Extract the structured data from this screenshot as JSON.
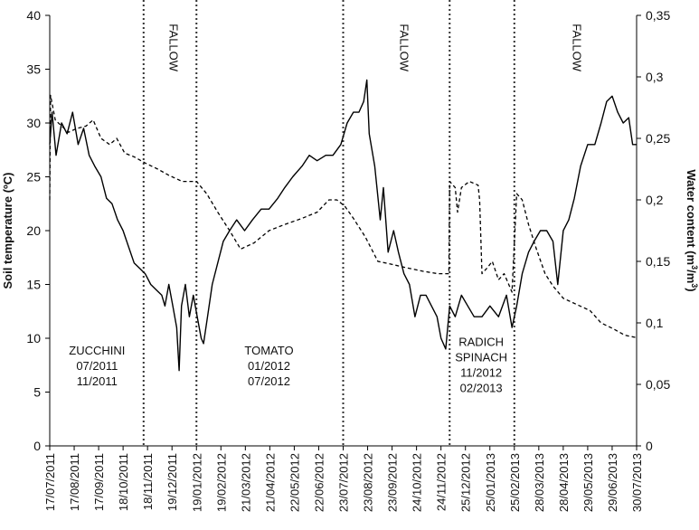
{
  "chart_data": {
    "type": "line",
    "title": "",
    "ylabel_left": "Soil temperature (ºC)",
    "ylabel_right_parts": [
      "Water content (m",
      "3",
      "/m",
      "3",
      ")"
    ],
    "ylim_left": [
      0,
      40
    ],
    "ylim_right": [
      0,
      0.35
    ],
    "yticks_left": [
      "0",
      "5",
      "10",
      "15",
      "20",
      "25",
      "30",
      "35",
      "40"
    ],
    "yticks_right": [
      "0",
      "0,05",
      "0,1",
      "0,15",
      "0,2",
      "0,25",
      "0,3",
      "0,35"
    ],
    "x_range": [
      "2011-07-17",
      "2013-07-30"
    ],
    "xtick_labels": [
      "17/07/2011",
      "17/08/2011",
      "17/09/2011",
      "18/10/2011",
      "18/11/2011",
      "19/12/2011",
      "19/01/2012",
      "19/02/2012",
      "21/03/2012",
      "21/04/2012",
      "22/05/2012",
      "22/06/2012",
      "23/07/2012",
      "23/08/2012",
      "23/09/2012",
      "24/10/2012",
      "24/11/2012",
      "25/12/2012",
      "25/01/2013",
      "25/02/2013",
      "28/03/2013",
      "28/04/2013",
      "29/05/2013",
      "29/06/2013",
      "30/07/2013"
    ],
    "xtick_dates": [
      "2011-07-17",
      "2011-08-17",
      "2011-09-17",
      "2011-10-18",
      "2011-11-18",
      "2011-12-19",
      "2012-01-19",
      "2012-02-19",
      "2012-03-21",
      "2012-04-21",
      "2012-05-22",
      "2012-06-22",
      "2012-07-23",
      "2012-08-23",
      "2012-09-23",
      "2012-10-24",
      "2012-11-24",
      "2012-12-25",
      "2013-01-25",
      "2013-02-25",
      "2013-03-28",
      "2013-04-28",
      "2013-05-29",
      "2013-06-29",
      "2013-07-30"
    ],
    "dividers": [
      "2011-11-13",
      "2012-01-19",
      "2012-07-23",
      "2012-12-05",
      "2013-02-25"
    ],
    "annotations": [
      {
        "lines": [
          "ZUCCHINI",
          "07/2011",
          "11/2011"
        ],
        "date": "2011-09-15",
        "value": 8.5,
        "rotated": false
      },
      {
        "lines": [
          "TOMATO",
          "01/2012",
          "07/2012"
        ],
        "date": "2012-04-20",
        "value": 8.5,
        "rotated": false
      },
      {
        "lines": [
          "RADICH",
          "SPINACH",
          "11/2012",
          "02/2013"
        ],
        "date": "2013-01-14",
        "value": 9.3,
        "rotated": false
      },
      {
        "lines": [
          "FALLOW"
        ],
        "date": "2011-12-16",
        "value": 37,
        "rotated": true
      },
      {
        "lines": [
          "FALLOW"
        ],
        "date": "2012-10-03",
        "value": 37,
        "rotated": true
      },
      {
        "lines": [
          "FALLOW"
        ],
        "date": "2013-05-10",
        "value": 37,
        "rotated": true
      }
    ],
    "series": [
      {
        "style": "solid",
        "axis": "left",
        "points": [
          [
            "2011-07-17",
            28
          ],
          [
            "2011-07-20",
            31
          ],
          [
            "2011-07-25",
            27
          ],
          [
            "2011-08-01",
            30
          ],
          [
            "2011-08-08",
            29
          ],
          [
            "2011-08-15",
            31
          ],
          [
            "2011-08-22",
            28
          ],
          [
            "2011-08-29",
            29.5
          ],
          [
            "2011-09-05",
            27
          ],
          [
            "2011-09-12",
            26
          ],
          [
            "2011-09-20",
            25
          ],
          [
            "2011-09-27",
            23
          ],
          [
            "2011-10-04",
            22.5
          ],
          [
            "2011-10-11",
            21
          ],
          [
            "2011-10-18",
            20
          ],
          [
            "2011-10-25",
            18.5
          ],
          [
            "2011-11-01",
            17
          ],
          [
            "2011-11-08",
            16.5
          ],
          [
            "2011-11-15",
            16
          ],
          [
            "2011-11-22",
            15
          ],
          [
            "2011-11-29",
            14.5
          ],
          [
            "2011-12-06",
            14
          ],
          [
            "2011-12-10",
            13
          ],
          [
            "2011-12-15",
            15
          ],
          [
            "2011-12-20",
            13
          ],
          [
            "2011-12-25",
            11
          ],
          [
            "2011-12-28",
            7
          ],
          [
            "2011-12-31",
            13
          ],
          [
            "2012-01-05",
            15
          ],
          [
            "2012-01-10",
            12
          ],
          [
            "2012-01-15",
            14
          ],
          [
            "2012-01-20",
            12
          ],
          [
            "2012-01-25",
            10
          ],
          [
            "2012-01-28",
            9.5
          ],
          [
            "2012-02-02",
            12
          ],
          [
            "2012-02-08",
            15
          ],
          [
            "2012-02-15",
            17
          ],
          [
            "2012-02-22",
            19
          ],
          [
            "2012-03-01",
            20
          ],
          [
            "2012-03-10",
            21
          ],
          [
            "2012-03-20",
            20
          ],
          [
            "2012-03-30",
            21
          ],
          [
            "2012-04-10",
            22
          ],
          [
            "2012-04-20",
            22
          ],
          [
            "2012-05-01",
            23
          ],
          [
            "2012-05-10",
            24
          ],
          [
            "2012-05-20",
            25
          ],
          [
            "2012-06-01",
            26
          ],
          [
            "2012-06-10",
            27
          ],
          [
            "2012-06-20",
            26.5
          ],
          [
            "2012-07-01",
            27
          ],
          [
            "2012-07-10",
            27
          ],
          [
            "2012-07-20",
            28
          ],
          [
            "2012-07-28",
            30
          ],
          [
            "2012-08-05",
            31
          ],
          [
            "2012-08-12",
            31
          ],
          [
            "2012-08-18",
            32
          ],
          [
            "2012-08-22",
            34
          ],
          [
            "2012-08-25",
            29
          ],
          [
            "2012-09-01",
            26
          ],
          [
            "2012-09-08",
            21
          ],
          [
            "2012-09-12",
            24
          ],
          [
            "2012-09-18",
            18
          ],
          [
            "2012-09-25",
            20
          ],
          [
            "2012-10-01",
            18
          ],
          [
            "2012-10-08",
            16
          ],
          [
            "2012-10-15",
            15
          ],
          [
            "2012-10-22",
            12
          ],
          [
            "2012-10-29",
            14
          ],
          [
            "2012-11-05",
            14
          ],
          [
            "2012-11-12",
            13
          ],
          [
            "2012-11-19",
            12
          ],
          [
            "2012-11-24",
            10
          ],
          [
            "2012-11-30",
            9
          ],
          [
            "2012-12-05",
            13
          ],
          [
            "2012-12-12",
            12
          ],
          [
            "2012-12-20",
            14
          ],
          [
            "2012-12-28",
            13
          ],
          [
            "2013-01-05",
            12
          ],
          [
            "2013-01-15",
            12
          ],
          [
            "2013-01-25",
            13
          ],
          [
            "2013-02-05",
            12
          ],
          [
            "2013-02-15",
            14
          ],
          [
            "2013-02-22",
            11
          ],
          [
            "2013-02-28",
            13
          ],
          [
            "2013-03-07",
            16
          ],
          [
            "2013-03-15",
            18
          ],
          [
            "2013-03-22",
            19
          ],
          [
            "2013-03-30",
            20
          ],
          [
            "2013-04-07",
            20
          ],
          [
            "2013-04-15",
            19
          ],
          [
            "2013-04-21",
            15
          ],
          [
            "2013-04-28",
            20
          ],
          [
            "2013-05-05",
            21
          ],
          [
            "2013-05-12",
            23
          ],
          [
            "2013-05-20",
            26
          ],
          [
            "2013-05-29",
            28
          ],
          [
            "2013-06-07",
            28
          ],
          [
            "2013-06-15",
            30
          ],
          [
            "2013-06-22",
            32
          ],
          [
            "2013-06-29",
            32.5
          ],
          [
            "2013-07-06",
            31
          ],
          [
            "2013-07-13",
            30
          ],
          [
            "2013-07-20",
            30.5
          ],
          [
            "2013-07-25",
            28
          ],
          [
            "2013-07-30",
            28
          ]
        ]
      },
      {
        "style": "dashed",
        "axis": "right",
        "points": [
          [
            "2011-07-17",
            0.2
          ],
          [
            "2011-07-18",
            0.285
          ],
          [
            "2011-07-24",
            0.265
          ],
          [
            "2011-08-01",
            0.26
          ],
          [
            "2011-08-10",
            0.255
          ],
          [
            "2011-08-20",
            0.258
          ],
          [
            "2011-09-01",
            0.26
          ],
          [
            "2011-09-10",
            0.265
          ],
          [
            "2011-09-20",
            0.25
          ],
          [
            "2011-10-01",
            0.245
          ],
          [
            "2011-10-10",
            0.25
          ],
          [
            "2011-10-20",
            0.238
          ],
          [
            "2011-11-01",
            0.235
          ],
          [
            "2011-11-15",
            0.23
          ],
          [
            "2011-12-01",
            0.225
          ],
          [
            "2011-12-15",
            0.22
          ],
          [
            "2012-01-01",
            0.215
          ],
          [
            "2012-01-19",
            0.215
          ],
          [
            "2012-02-01",
            0.205
          ],
          [
            "2012-02-15",
            0.19
          ],
          [
            "2012-03-01",
            0.175
          ],
          [
            "2012-03-15",
            0.16
          ],
          [
            "2012-04-01",
            0.165
          ],
          [
            "2012-04-20",
            0.175
          ],
          [
            "2012-05-10",
            0.18
          ],
          [
            "2012-06-01",
            0.185
          ],
          [
            "2012-06-20",
            0.19
          ],
          [
            "2012-07-05",
            0.2
          ],
          [
            "2012-07-15",
            0.2
          ],
          [
            "2012-07-25",
            0.195
          ],
          [
            "2012-08-05",
            0.185
          ],
          [
            "2012-08-20",
            0.17
          ],
          [
            "2012-09-05",
            0.15
          ],
          [
            "2012-09-20",
            0.148
          ],
          [
            "2012-10-10",
            0.145
          ],
          [
            "2012-11-01",
            0.142
          ],
          [
            "2012-11-20",
            0.14
          ],
          [
            "2012-12-04",
            0.14
          ],
          [
            "2012-12-05",
            0.215
          ],
          [
            "2012-12-12",
            0.21
          ],
          [
            "2012-12-15",
            0.19
          ],
          [
            "2012-12-20",
            0.21
          ],
          [
            "2012-12-30",
            0.215
          ],
          [
            "2013-01-10",
            0.212
          ],
          [
            "2013-01-12",
            0.2
          ],
          [
            "2013-01-15",
            0.14
          ],
          [
            "2013-01-22",
            0.145
          ],
          [
            "2013-01-28",
            0.15
          ],
          [
            "2013-02-05",
            0.135
          ],
          [
            "2013-02-12",
            0.14
          ],
          [
            "2013-02-22",
            0.125
          ],
          [
            "2013-02-28",
            0.205
          ],
          [
            "2013-03-07",
            0.2
          ],
          [
            "2013-03-15",
            0.18
          ],
          [
            "2013-03-25",
            0.16
          ],
          [
            "2013-04-05",
            0.14
          ],
          [
            "2013-04-15",
            0.13
          ],
          [
            "2013-04-28",
            0.12
          ],
          [
            "2013-05-15",
            0.115
          ],
          [
            "2013-06-01",
            0.11
          ],
          [
            "2013-06-15",
            0.1
          ],
          [
            "2013-07-01",
            0.095
          ],
          [
            "2013-07-15",
            0.09
          ],
          [
            "2013-07-30",
            0.088
          ]
        ]
      }
    ]
  }
}
